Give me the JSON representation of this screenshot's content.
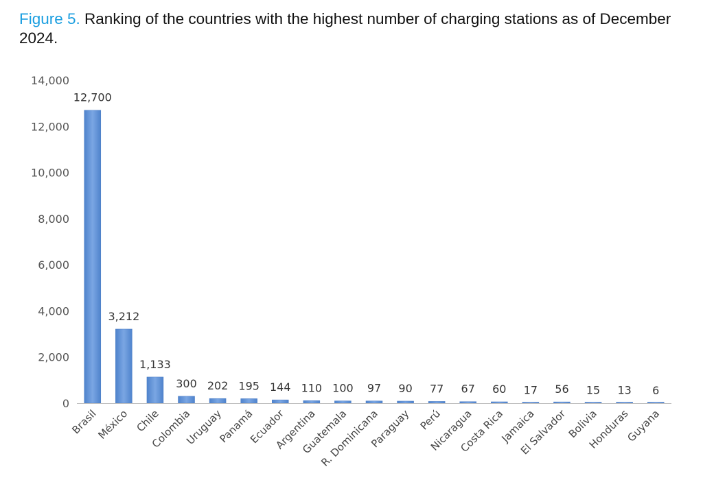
{
  "caption": {
    "figure_label": "Figure 5.",
    "text": " Ranking of the countries with the highest number of charging stations as of December 2024."
  },
  "chart_data": {
    "type": "bar",
    "title": "",
    "xlabel": "",
    "ylabel": "",
    "ylim": [
      0,
      14000
    ],
    "yticks": [
      0,
      2000,
      4000,
      6000,
      8000,
      10000,
      12000,
      14000
    ],
    "ytick_labels": [
      "0",
      "2,000",
      "4,000",
      "6,000",
      "8,000",
      "10,000",
      "12,000",
      "14,000"
    ],
    "grid": false,
    "legend": "none",
    "bar_color": "#5b8fd6",
    "categories": [
      "Brasil",
      "México",
      "Chile",
      "Colombia",
      "Uruguay",
      "Panamá",
      "Ecuador",
      "Argentina",
      "Guatemala",
      "R. Dominicana",
      "Paraguay",
      "Perú",
      "Nicaragua",
      "Costa Rica",
      "Jamaica",
      "El Salvador",
      "Bolivia",
      "Honduras",
      "Guyana"
    ],
    "values": [
      12700,
      3212,
      1133,
      300,
      202,
      195,
      144,
      110,
      100,
      97,
      90,
      77,
      67,
      60,
      17,
      56,
      15,
      13,
      6
    ],
    "data_labels": [
      "12,700",
      "3,212",
      "1,133",
      "300",
      "202",
      "195",
      "144",
      "110",
      "100",
      "97",
      "90",
      "77",
      "67",
      "60",
      "17",
      "56",
      "15",
      "13",
      "6"
    ]
  }
}
